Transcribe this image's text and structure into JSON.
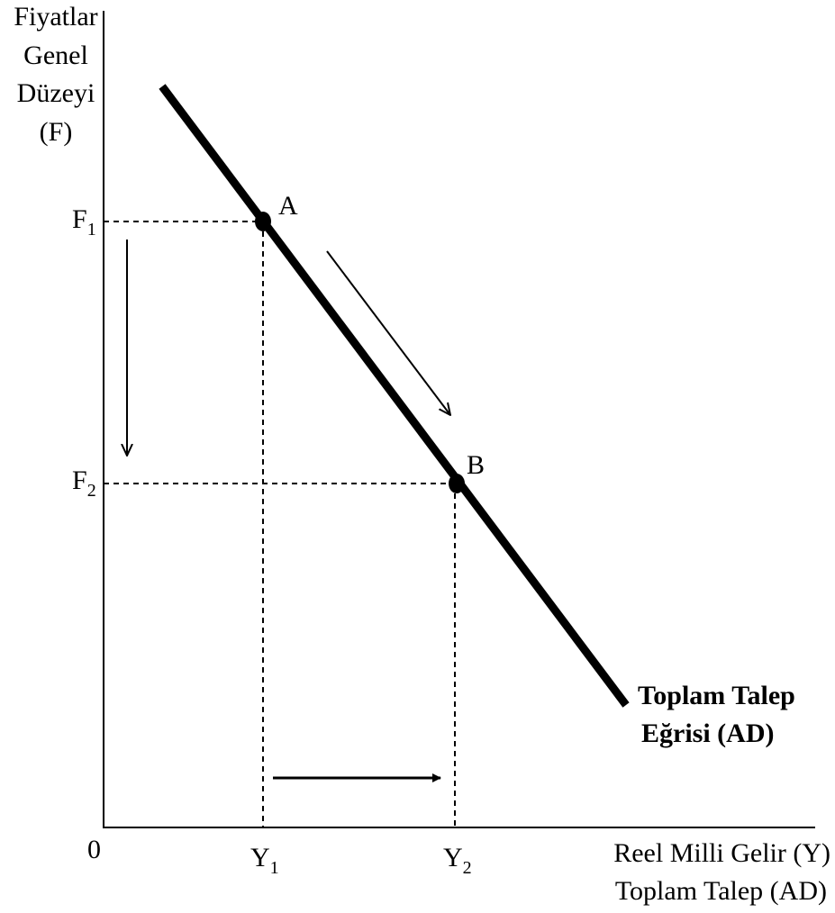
{
  "y_axis_title": [
    "Fiyatlar",
    "Genel",
    "Düzeyi",
    "(F)"
  ],
  "x_axis_title": [
    "Reel Milli Gelir (Y)",
    "Toplam Talep (AD)"
  ],
  "origin_label": "0",
  "price_levels": [
    {
      "base": "F",
      "sub": "1"
    },
    {
      "base": "F",
      "sub": "2"
    }
  ],
  "income_levels": [
    {
      "base": "Y",
      "sub": "1"
    },
    {
      "base": "Y",
      "sub": "2"
    }
  ],
  "points": [
    {
      "label": "A",
      "price_level": "F1",
      "income": "Y1"
    },
    {
      "label": "B",
      "price_level": "F2",
      "income": "Y2"
    }
  ],
  "curve_label": [
    "Toplam Talep",
    "Eğrisi (AD)"
  ],
  "colors": {
    "ink": "#000000",
    "background": "#ffffff"
  }
}
